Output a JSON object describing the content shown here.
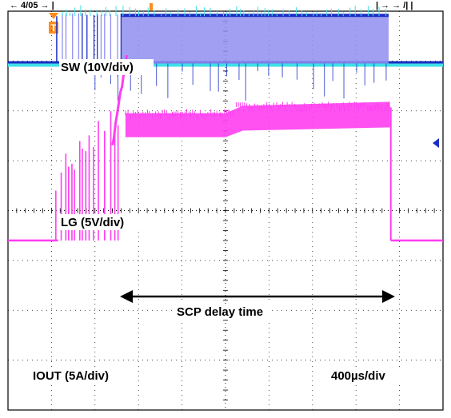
{
  "chart_data": {
    "type": "line",
    "title": "",
    "x_scale": "400µs/div",
    "grid": true,
    "divisions": {
      "horizontal": 10,
      "vertical": 8
    },
    "trigger_marker": "T",
    "header_text_fragment": "← 4/05 → |",
    "header_text_right": "| → → /| |",
    "channels": [
      {
        "name": "SW",
        "label": "SW (10V/div)",
        "scale": "10V/div",
        "color": "#1c2fc2",
        "fill_color": "#8f8ef0",
        "secondary_color": "#3fe0e8"
      },
      {
        "name": "LG",
        "label": "LG (5V/div)",
        "scale": "5V/div",
        "color": "#ff3df0"
      },
      {
        "name": "IOUT",
        "label": "IOUT (5A/div)",
        "scale": "5A/div",
        "color": "#ff3df0"
      }
    ],
    "annotations": [
      {
        "text": "SCP delay time",
        "type": "double-arrow",
        "from_div": 2.7,
        "to_div": 8.5
      }
    ],
    "series": [
      {
        "name": "SW",
        "x_div": [
          0,
          1.2,
          1.3,
          2.0,
          2.7,
          5.0,
          8.7,
          8.8,
          10
        ],
        "y_div": [
          2.95,
          2.95,
          3.9,
          3.9,
          3.95,
          3.95,
          3.9,
          2.95,
          2.95
        ]
      },
      {
        "name": "LG",
        "x_div": [
          0,
          1.2,
          1.3,
          2.0,
          2.5,
          2.7,
          5.0,
          5.4,
          8.7,
          8.8,
          10
        ],
        "y_div": [
          -0.6,
          -0.6,
          0.5,
          1.0,
          1.4,
          2.0,
          2.0,
          2.1,
          2.05,
          -0.6,
          -0.6
        ]
      }
    ]
  },
  "labels": {
    "sw": "SW (10V/div)",
    "lg": "LG (5V/div)",
    "iout": "IOUT (5A/div)",
    "timebase": "400µs/div",
    "scp": "SCP delay time",
    "trigger": "T"
  },
  "colors": {
    "grid": "#000000",
    "frame": "#000000",
    "sw_trace": "#1c2fc2",
    "sw_fill": "#8f8ef0",
    "cyan_trace": "#3fe0e8",
    "lg_trace": "#ff3df0",
    "marker": "#ff8c1a",
    "ref_marker": "#1c2fc2"
  }
}
